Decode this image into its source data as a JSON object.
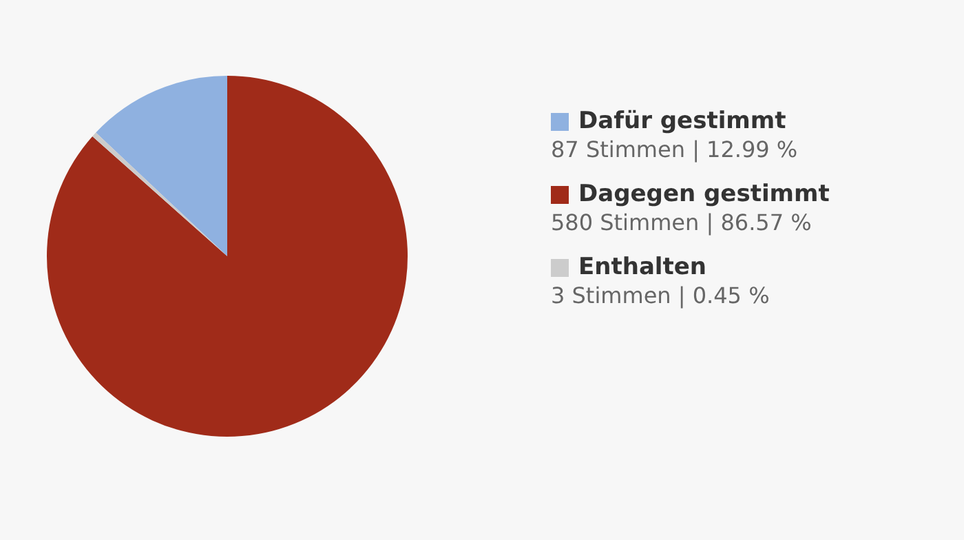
{
  "chart_data": {
    "type": "pie",
    "categories": [
      "Dafür gestimmt",
      "Dagegen gestimmt",
      "Enthalten"
    ],
    "values": [
      87,
      580,
      3
    ],
    "colors": [
      "#8fb1e0",
      "#a02b19",
      "#cccccc"
    ],
    "value_labels": [
      "87 Stimmen | 12.99 %",
      "580 Stimmen | 86.57 %",
      "3 Stimmen | 0.45 %"
    ],
    "legend": "right"
  }
}
